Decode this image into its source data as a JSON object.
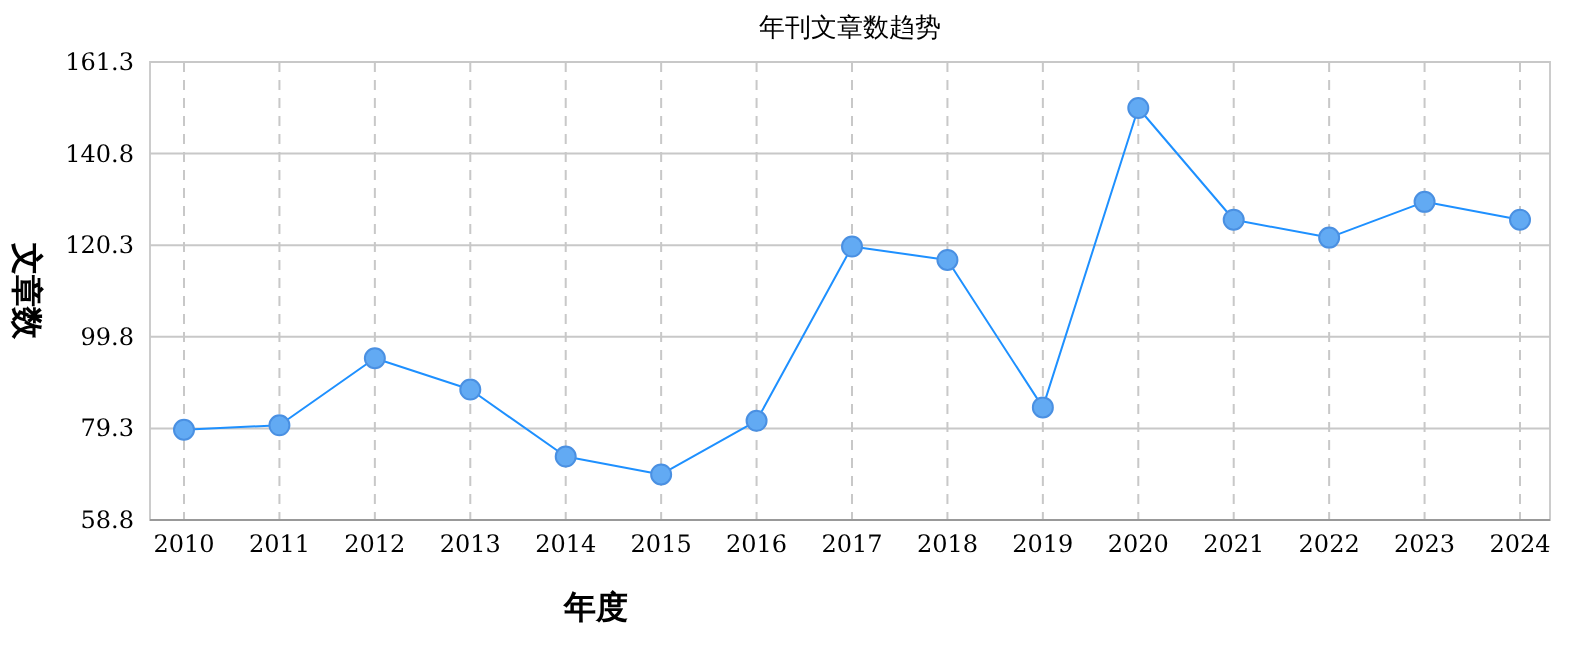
{
  "chart_data": {
    "type": "line",
    "title": "年刊文章数趋势",
    "xlabel": "年度",
    "ylabel": "文章数",
    "categories": [
      "2010",
      "2011",
      "2012",
      "2013",
      "2014",
      "2015",
      "2016",
      "2017",
      "2018",
      "2019",
      "2020",
      "2021",
      "2022",
      "2023",
      "2024"
    ],
    "series": [
      {
        "color": "#1e90ff",
        "values": [
          79,
          80,
          95,
          88,
          73,
          69,
          81,
          120,
          117,
          84,
          151,
          126,
          122,
          130,
          126
        ]
      }
    ],
    "ylim": [
      58.8,
      161.3
    ],
    "yticks": [
      58.8,
      79.3,
      99.8,
      120.3,
      140.8,
      161.3
    ],
    "grid": true,
    "marker": "circle",
    "line_style": "solid"
  }
}
